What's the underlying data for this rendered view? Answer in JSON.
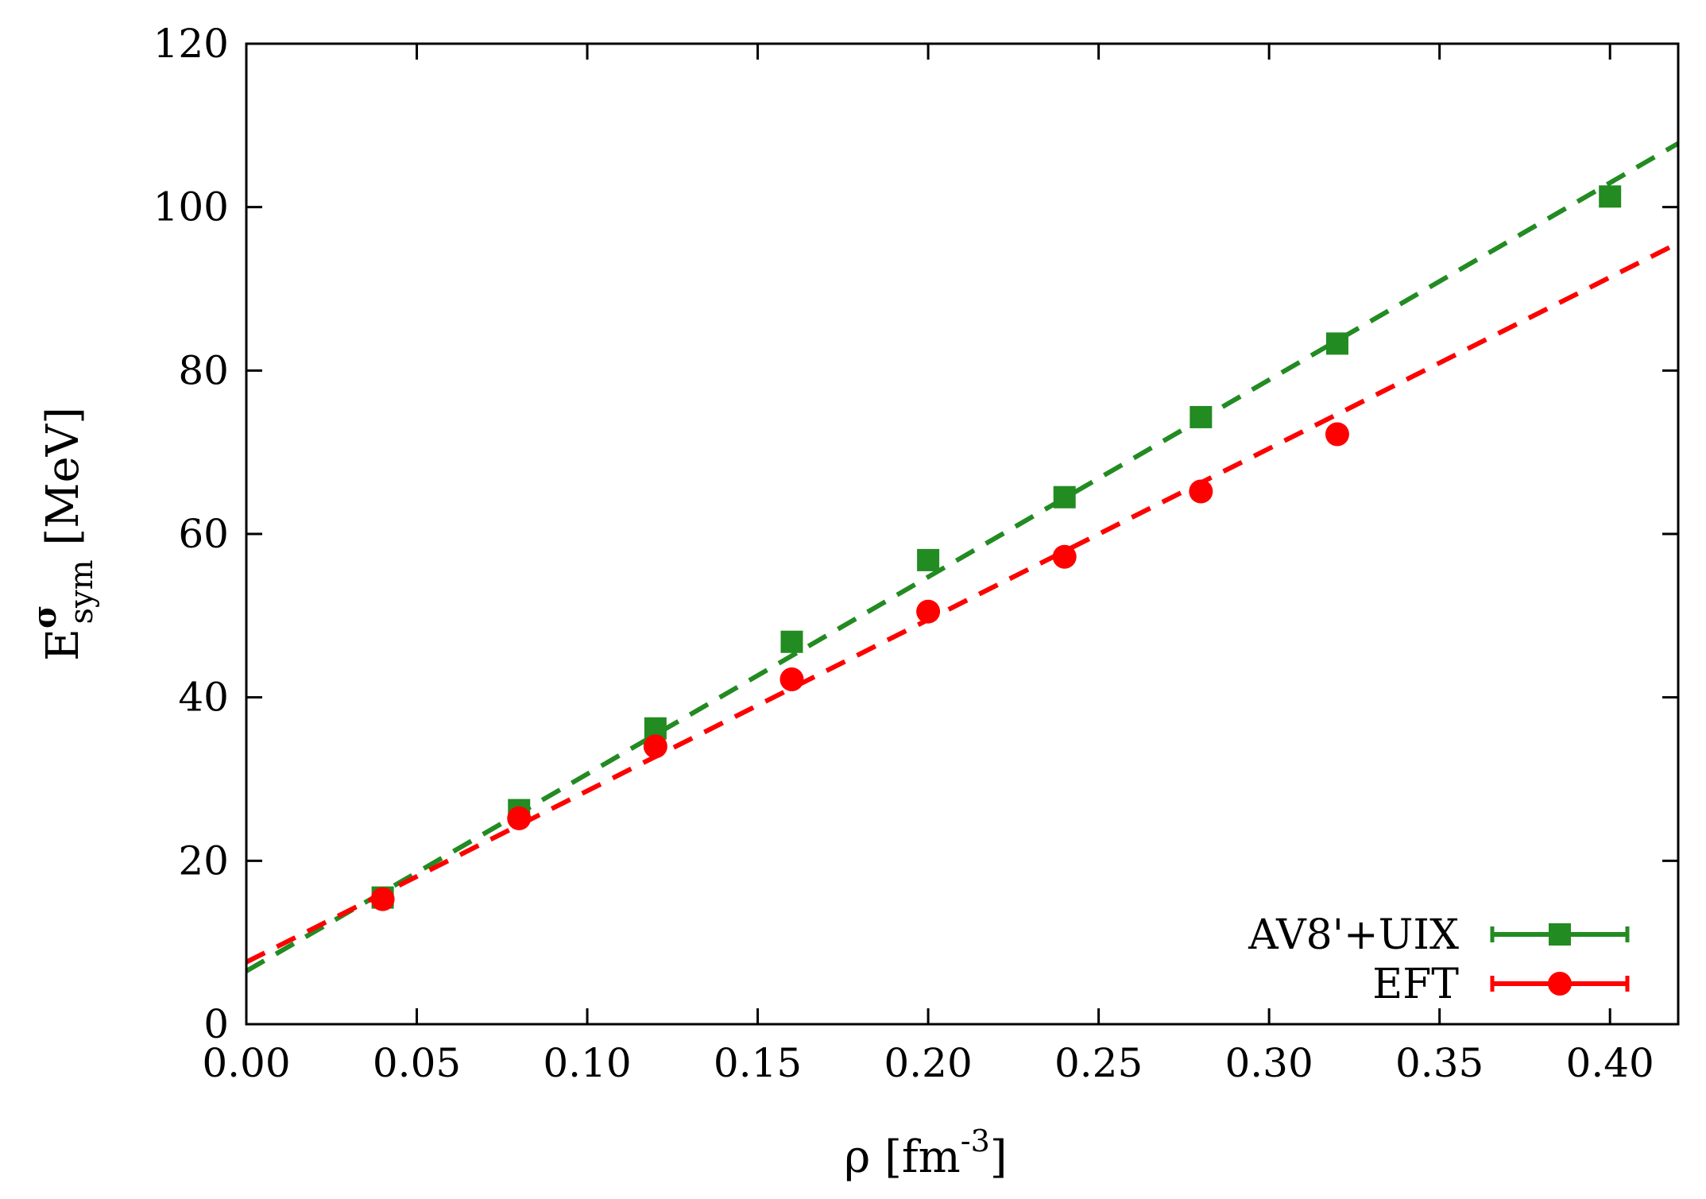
{
  "chart_data": {
    "type": "scatter",
    "title": "",
    "xlabel": {
      "symbol": "ρ",
      "unit_open": " [fm",
      "unit_exp": "-3",
      "unit_close": "]"
    },
    "ylabel": {
      "base": "E",
      "sup": "σ",
      "sub": "sym",
      "unit": " [MeV]"
    },
    "xlim": [
      0.0,
      0.42
    ],
    "ylim": [
      0,
      120
    ],
    "x_ticks": [
      "0.00",
      "0.05",
      "0.10",
      "0.15",
      "0.20",
      "0.25",
      "0.30",
      "0.35",
      "0.40"
    ],
    "y_ticks": [
      "0",
      "20",
      "40",
      "60",
      "80",
      "100",
      "120"
    ],
    "grid": false,
    "legend_position": "bottom-right",
    "series": [
      {
        "name": "AV8'+UIX",
        "marker": "square",
        "color": "#228b22",
        "x": [
          0.04,
          0.08,
          0.12,
          0.16,
          0.2,
          0.24,
          0.28,
          0.32,
          0.4
        ],
        "y": [
          15.5,
          26.2,
          36.2,
          46.8,
          56.8,
          64.5,
          74.3,
          83.3,
          101.3
        ],
        "fit_line": {
          "style": "dashed",
          "x": [
            0.0,
            0.42
          ],
          "y": [
            6.5,
            107.8
          ]
        }
      },
      {
        "name": "EFT",
        "marker": "circle",
        "color": "#ff0000",
        "x": [
          0.04,
          0.08,
          0.12,
          0.16,
          0.2,
          0.24,
          0.28,
          0.32
        ],
        "y": [
          15.3,
          25.2,
          34.0,
          42.2,
          50.5,
          57.2,
          65.2,
          72.2
        ],
        "fit_line": {
          "style": "dashed",
          "x": [
            0.0,
            0.42
          ],
          "y": [
            7.6,
            95.6
          ]
        }
      }
    ]
  }
}
